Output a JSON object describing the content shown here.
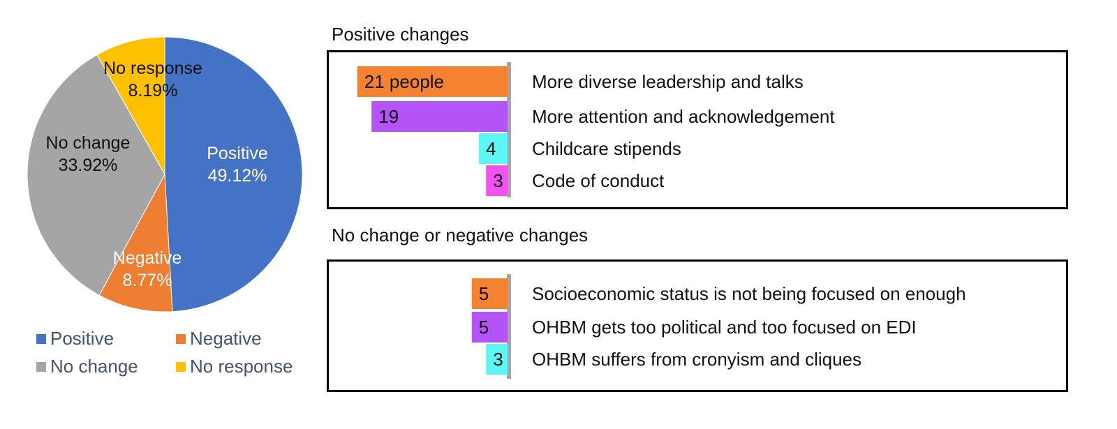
{
  "chart_data": [
    {
      "type": "pie",
      "title": "",
      "slices": [
        {
          "label": "Positive",
          "value": 49.12,
          "display": "49.12%",
          "color": "#4472c4",
          "label_color": "#ffffff"
        },
        {
          "label": "Negative",
          "value": 8.77,
          "display": "8.77%",
          "color": "#ed7d31",
          "label_color": "#ffffff"
        },
        {
          "label": "No change",
          "value": 33.92,
          "display": "33.92%",
          "color": "#a5a5a5",
          "label_color": "#111111"
        },
        {
          "label": "No response",
          "value": 8.19,
          "display": "8.19%",
          "color": "#ffc000",
          "label_color": "#111111"
        }
      ],
      "legend": {
        "position": "bottom",
        "items": [
          {
            "label": "Positive",
            "color": "#4472c4"
          },
          {
            "label": "Negative",
            "color": "#ed7d31"
          },
          {
            "label": "No change",
            "color": "#a5a5a5"
          },
          {
            "label": "No response",
            "color": "#ffc000"
          }
        ]
      }
    },
    {
      "type": "bar",
      "orientation": "horizontal",
      "title": "Positive changes",
      "categories": [
        "More diverse leadership and talks",
        "More attention and acknowledgement",
        "Childcare stipends",
        "Code of conduct"
      ],
      "values": [
        21,
        19,
        4,
        3
      ],
      "value_labels": [
        "21 people",
        "19",
        "4",
        "3"
      ],
      "colors": [
        "#f58231",
        "#b453f7",
        "#5ef5f5",
        "#f052f0"
      ]
    },
    {
      "type": "bar",
      "orientation": "horizontal",
      "title": "No change or negative changes",
      "categories": [
        "Socioeconomic status is not being focused on enough",
        "OHBM gets too political and too focused on EDI",
        "OHBM suffers from cronyism and cliques"
      ],
      "values": [
        5,
        5,
        3
      ],
      "value_labels": [
        "5",
        "5",
        "3"
      ],
      "colors": [
        "#f58231",
        "#b453f7",
        "#5ef5f5"
      ]
    }
  ]
}
